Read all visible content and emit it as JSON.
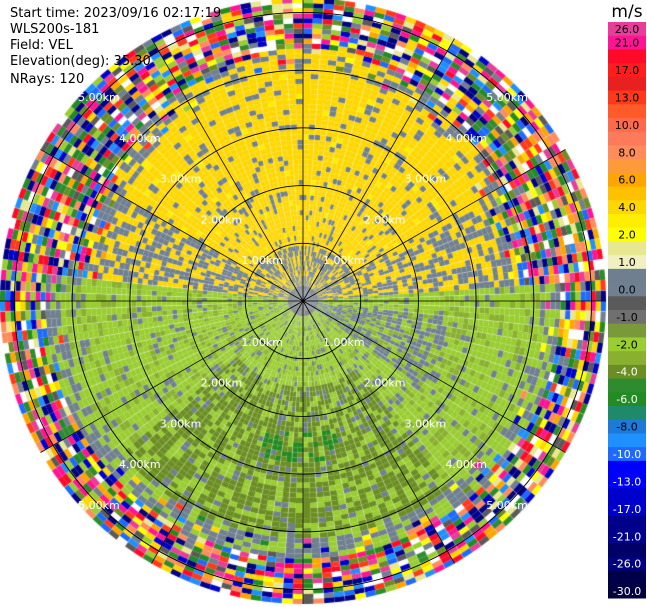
{
  "header": {
    "start_time": "Start time: 2023/09/16 02:17:19",
    "instrument": "WLS200s-181",
    "field": "Field: VEL",
    "elevation": "Elevation(deg): 35.30",
    "nrays": "NRays: 120"
  },
  "chart_data": {
    "type": "heatmap",
    "subtype": "ppi-polar",
    "field": "VEL",
    "instrument": "WLS200s-181",
    "start_time": "2023/09/16 02:17:19",
    "elevation_deg": 35.3,
    "n_rays": 120,
    "range_rings_km": [
      1.0,
      2.0,
      3.0,
      4.0,
      5.0
    ],
    "ring_labels": [
      "1.00km",
      "2.00km",
      "3.00km",
      "4.00km",
      "5.00km"
    ],
    "spokes_deg": [
      0,
      30,
      60,
      90,
      120,
      150,
      180,
      210,
      240,
      270,
      300,
      330
    ],
    "max_range_km": 5.25,
    "colorbar": {
      "unit": "m/s",
      "bins": [
        {
          "label": "26.0",
          "color": "#e83e9a"
        },
        {
          "label": "21.0",
          "color": "#ff1493"
        },
        {
          "label": "",
          "color": "#ff0a28"
        },
        {
          "label": "17.0",
          "color": "#ff1e1e"
        },
        {
          "label": "",
          "color": "#e82020"
        },
        {
          "label": "13.0",
          "color": "#ff3a1a"
        },
        {
          "label": "",
          "color": "#ff5a2a"
        },
        {
          "label": "10.0",
          "color": "#ff6a4a"
        },
        {
          "label": "",
          "color": "#ff7a5a"
        },
        {
          "label": "8.0",
          "color": "#ff8c5a"
        },
        {
          "label": "",
          "color": "#ff9a3a"
        },
        {
          "label": "6.0",
          "color": "#ffa500"
        },
        {
          "label": "",
          "color": "#ffc000"
        },
        {
          "label": "4.0",
          "color": "#ffd700"
        },
        {
          "label": "",
          "color": "#ffee00"
        },
        {
          "label": "2.0",
          "color": "#ffff00"
        },
        {
          "label": "",
          "color": "#e8e890"
        },
        {
          "label": "1.0",
          "color": "#f0f0c0"
        },
        {
          "label": "",
          "color": "#6f7f8f"
        },
        {
          "label": "0.0",
          "color": "#708090"
        },
        {
          "label": "",
          "color": "#5a5a5a"
        },
        {
          "label": "-1.0",
          "color": "#707070"
        },
        {
          "label": "",
          "color": "#7a9a3a"
        },
        {
          "label": "-2.0",
          "color": "#9acd32"
        },
        {
          "label": "",
          "color": "#8ab030"
        },
        {
          "label": "-4.0",
          "color": "#6b8e23"
        },
        {
          "label": "",
          "color": "#2e8b2e"
        },
        {
          "label": "-6.0",
          "color": "#228b22"
        },
        {
          "label": "",
          "color": "#1e8a6a"
        },
        {
          "label": "-8.0",
          "color": "#1e7ad8"
        },
        {
          "label": "",
          "color": "#1e90ff"
        },
        {
          "label": "-10.0",
          "color": "#1e6aff"
        },
        {
          "label": "",
          "color": "#0000ff"
        },
        {
          "label": "-13.0",
          "color": "#0000ff"
        },
        {
          "label": "",
          "color": "#0000cd"
        },
        {
          "label": "-17.0",
          "color": "#0000cd"
        },
        {
          "label": "",
          "color": "#00008b"
        },
        {
          "label": "-21.0",
          "color": "#00008b"
        },
        {
          "label": "",
          "color": "#000066"
        },
        {
          "label": "-26.0",
          "color": "#000080"
        },
        {
          "label": "",
          "color": "#00004a"
        },
        {
          "label": "-30.0",
          "color": "#000040"
        }
      ]
    },
    "field_pattern": [
      {
        "region": "north half, within ~3.7 km",
        "velocity_m_s": "1.0 to 4.0",
        "color": "yellow"
      },
      {
        "region": "south half, within ~4.2 km",
        "velocity_m_s": "-1.0 to -4.0",
        "color": "green"
      },
      {
        "region": "patches near 0 velocity",
        "velocity_m_s": "-1.0 to 1.0",
        "color": "slate gray"
      },
      {
        "region": "beyond ~4 km",
        "velocity_m_s": "noise, full range",
        "color": "random"
      }
    ]
  }
}
